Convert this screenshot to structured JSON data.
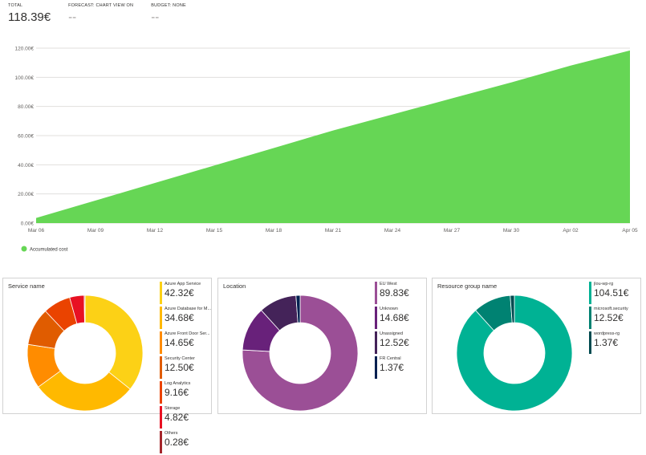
{
  "summary": {
    "total_label": "TOTAL",
    "total_value": "118.39€",
    "forecast_label": "FORECAST: CHART VIEW ON",
    "forecast_value": "--",
    "budget_label": "BUDGET: NONE",
    "budget_value": "--"
  },
  "chart_data": {
    "type": "area",
    "x": [
      "Mar 06",
      "Mar 09",
      "Mar 12",
      "Mar 15",
      "Mar 18",
      "Mar 21",
      "Mar 24",
      "Mar 27",
      "Mar 30",
      "Apr 02",
      "Apr 05"
    ],
    "y_ticks": [
      "0.00€",
      "20.00€",
      "40.00€",
      "60.00€",
      "80.00€",
      "100.00€",
      "120.00€"
    ],
    "ylim": [
      0,
      120
    ],
    "series": [
      {
        "name": "Accumulated cost",
        "color": "#66d655",
        "values": [
          3.5,
          15.5,
          27.5,
          39.5,
          51.5,
          63.5,
          74.5,
          85.5,
          96.5,
          108.0,
          118.39
        ]
      }
    ],
    "grid": true,
    "legend": "bottom-left"
  },
  "panels": [
    {
      "title": "Service name",
      "items": [
        {
          "name": "Azure App Service",
          "value": "42.32€",
          "amount": 42.32,
          "color": "#fcd116"
        },
        {
          "name": "Azure Database for M...",
          "value": "34.68€",
          "amount": 34.68,
          "color": "#ffb900"
        },
        {
          "name": "Azure Front Door Ser...",
          "value": "14.65€",
          "amount": 14.65,
          "color": "#ff8c00"
        },
        {
          "name": "Security Center",
          "value": "12.50€",
          "amount": 12.5,
          "color": "#e05c00"
        },
        {
          "name": "Log Analytics",
          "value": "9.16€",
          "amount": 9.16,
          "color": "#ea4300"
        },
        {
          "name": "Storage",
          "value": "4.82€",
          "amount": 4.82,
          "color": "#e81123"
        },
        {
          "name": "Others",
          "value": "0.28€",
          "amount": 0.28,
          "color": "#a4262c"
        }
      ]
    },
    {
      "title": "Location",
      "items": [
        {
          "name": "EU West",
          "value": "89.83€",
          "amount": 89.83,
          "color": "#9b4f96"
        },
        {
          "name": "Unknown",
          "value": "14.68€",
          "amount": 14.68,
          "color": "#68217a"
        },
        {
          "name": "Unassigned",
          "value": "12.52€",
          "amount": 12.52,
          "color": "#442359"
        },
        {
          "name": "FR Central",
          "value": "1.37€",
          "amount": 1.37,
          "color": "#002050"
        }
      ]
    },
    {
      "title": "Resource group name",
      "items": [
        {
          "name": "jlou-wp-rg",
          "value": "104.51€",
          "amount": 104.51,
          "color": "#00b294"
        },
        {
          "name": "microsoft.security",
          "value": "12.52€",
          "amount": 12.52,
          "color": "#008272"
        },
        {
          "name": "wordpress-rg",
          "value": "1.37€",
          "amount": 1.37,
          "color": "#004b50"
        }
      ]
    }
  ]
}
